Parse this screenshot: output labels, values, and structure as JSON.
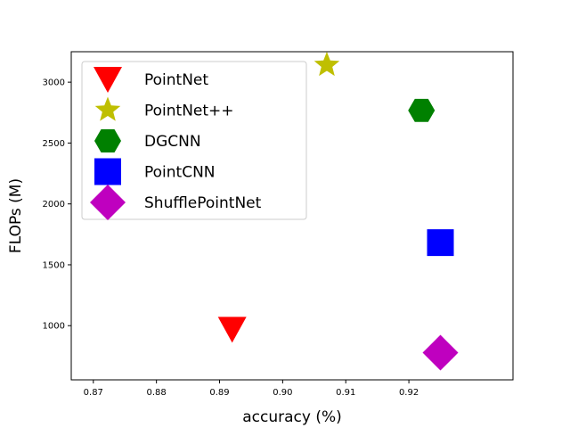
{
  "chart_data": {
    "type": "scatter",
    "title": "",
    "xlabel": "accuracy (%)",
    "ylabel": "FLOPs (M)",
    "xlim": [
      0.8665,
      0.9365
    ],
    "ylim": [
      555,
      3250
    ],
    "xticks": [
      0.87,
      0.88,
      0.89,
      0.9,
      0.91,
      0.92
    ],
    "xtick_labels": [
      "0.87",
      "0.88",
      "0.89",
      "0.90",
      "0.91",
      "0.92"
    ],
    "yticks": [
      1000,
      1500,
      2000,
      2500,
      3000
    ],
    "ytick_labels": [
      "1000",
      "1500",
      "2000",
      "2500",
      "3000"
    ],
    "grid": false,
    "legend_position": "top-left",
    "series": [
      {
        "name": "PointNet",
        "marker": "triangle-down-icon",
        "color": "#ff0000",
        "x": 0.892,
        "y": 970
      },
      {
        "name": "PointNet++",
        "marker": "star-icon",
        "color": "#bfbf00",
        "x": 0.907,
        "y": 3140
      },
      {
        "name": "DGCNN",
        "marker": "hexagon-icon",
        "color": "#008000",
        "x": 0.922,
        "y": 2768
      },
      {
        "name": "PointCNN",
        "marker": "square-icon",
        "color": "#0000ff",
        "x": 0.925,
        "y": 1682
      },
      {
        "name": "ShufflePointNet",
        "marker": "diamond-icon",
        "color": "#bf00bf",
        "x": 0.925,
        "y": 778
      }
    ]
  }
}
